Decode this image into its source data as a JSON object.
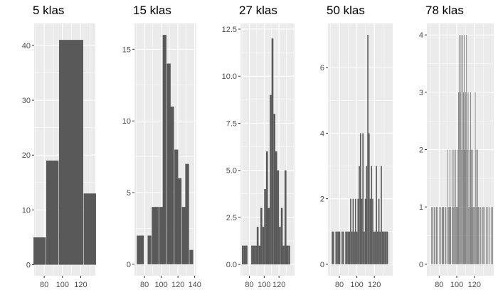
{
  "colors": {
    "panel_bg": "#ebebeb",
    "grid": "#ffffff",
    "bar": "#595959",
    "tick_text": "#4d4d4d"
  },
  "chart_data": [
    {
      "type": "bar",
      "title": "5 klas",
      "grid": true,
      "xlim": [
        69,
        136
      ],
      "ylim": [
        -2,
        44
      ],
      "xticks": [
        80,
        100,
        120
      ],
      "yticks": [
        0,
        10,
        20,
        30,
        40
      ],
      "x": [
        75,
        89,
        103,
        116,
        130
      ],
      "values": [
        5,
        19,
        41,
        41,
        13
      ],
      "bin_width": 13.5,
      "series_note": ""
    },
    {
      "type": "bar",
      "title": "15 klas",
      "grid": true,
      "xlim": [
        68,
        142
      ],
      "ylim": [
        -0.8,
        16.8
      ],
      "xticks": [
        80,
        100,
        120,
        140
      ],
      "yticks": [
        0,
        5,
        10,
        15
      ],
      "x": [
        73,
        77,
        82,
        86,
        91,
        95,
        100,
        104,
        109,
        113,
        118,
        122,
        127,
        131,
        136
      ],
      "values": [
        2,
        2,
        0,
        2,
        4,
        4,
        4,
        16,
        14,
        11,
        8,
        6,
        4,
        7,
        1
      ],
      "bin_width": 4.5
    },
    {
      "type": "bar",
      "title": "27 klas",
      "grid": true,
      "xlim": [
        68,
        141
      ],
      "ylim": [
        -0.6,
        12.8
      ],
      "xticks": [
        80,
        100,
        120
      ],
      "yticks": [
        0,
        2.5,
        5,
        7.5,
        10,
        12.5
      ],
      "xtick_labels": [
        "80",
        "100",
        "120"
      ],
      "ytick_labels": [
        "0.0",
        "2.5",
        "5.0",
        "7.5",
        "10.0",
        "12.5"
      ],
      "x": [
        71.2,
        73.8,
        76.2,
        78.8,
        81.2,
        83.8,
        86.2,
        88.8,
        91.2,
        93.8,
        96.2,
        98.8,
        101.2,
        103.8,
        106.2,
        108.8,
        111.2,
        113.8,
        116.2,
        118.8,
        121.2,
        123.8,
        126.2,
        128.8,
        131.2,
        133.8
      ],
      "values": [
        1,
        1,
        1,
        0,
        0,
        1,
        1,
        1,
        2,
        1,
        3,
        2,
        4,
        6,
        3,
        9,
        12,
        8,
        6,
        5,
        2,
        3,
        1,
        5,
        1,
        1
      ],
      "bin_width": 2.5
    },
    {
      "type": "bar",
      "title": "50 klas",
      "grid": true,
      "xlim": [
        67,
        141
      ],
      "ylim": [
        -0.35,
        7.35
      ],
      "xticks": [
        80,
        100,
        120
      ],
      "yticks": [
        0,
        2,
        4,
        6
      ],
      "x": [
        72,
        73.4,
        74.8,
        76.2,
        77.6,
        79,
        80.4,
        81.8,
        83.2,
        84.6,
        86,
        87.4,
        88.8,
        90.2,
        91.6,
        93,
        94.4,
        95.8,
        97.2,
        98.6,
        100,
        101.4,
        102.8,
        104.2,
        105.6,
        107,
        108.4,
        109.8,
        111.2,
        112.6,
        114,
        115.4,
        116.8,
        118.2,
        119.6,
        121,
        122.4,
        123.8,
        125.2,
        126.6,
        128,
        129.4,
        130.8,
        132.2,
        133.6,
        135,
        136.4
      ],
      "values": [
        1,
        1,
        0,
        1,
        1,
        1,
        1,
        0,
        1,
        1,
        0,
        1,
        1,
        1,
        1,
        2,
        1,
        2,
        1,
        2,
        1,
        2,
        3,
        4,
        2,
        4,
        1,
        2,
        3,
        7,
        4,
        2,
        3,
        2,
        1,
        1,
        3,
        1,
        2,
        1,
        3,
        1,
        1,
        1,
        1,
        1,
        0
      ],
      "bin_width": 1.3
    },
    {
      "type": "bar",
      "title": "78 klas",
      "grid": true,
      "xlim": [
        66,
        142
      ],
      "ylim": [
        -0.2,
        4.2
      ],
      "xticks": [
        80,
        100,
        120
      ],
      "yticks": [
        0,
        1,
        2,
        3,
        4
      ],
      "x": [
        71.5,
        72.4,
        73.3,
        74.2,
        75.1,
        76.0,
        76.9,
        77.8,
        78.7,
        79.6,
        80.5,
        81.4,
        82.3,
        83.2,
        84.1,
        85.0,
        85.9,
        86.8,
        87.7,
        88.6,
        89.5,
        90.4,
        91.3,
        92.2,
        93.1,
        94.0,
        94.9,
        95.8,
        96.7,
        97.6,
        98.5,
        99.4,
        100.3,
        101.2,
        102.1,
        103.0,
        103.9,
        104.8,
        105.7,
        106.6,
        107.5,
        108.4,
        109.3,
        110.2,
        111.1,
        112.0,
        112.9,
        113.8,
        114.7,
        115.6,
        116.5,
        117.4,
        118.3,
        119.2,
        120.1,
        121.0,
        121.9,
        122.8,
        123.7,
        124.6,
        125.5,
        126.4,
        127.3,
        128.2,
        129.1,
        130.0,
        130.9,
        131.8,
        132.7,
        133.6,
        134.5,
        135.4,
        136.3,
        137.2,
        138.1,
        139.0,
        139.9,
        140.8
      ],
      "values": [
        1,
        1,
        0,
        1,
        1,
        0,
        1,
        1,
        0,
        0,
        1,
        1,
        0,
        1,
        1,
        1,
        0,
        1,
        1,
        0,
        2,
        1,
        1,
        2,
        1,
        0,
        2,
        1,
        2,
        1,
        2,
        1,
        2,
        1,
        3,
        4,
        3,
        4,
        2,
        4,
        3,
        4,
        2,
        3,
        4,
        2,
        3,
        1,
        2,
        3,
        2,
        1,
        2,
        1,
        1,
        3,
        2,
        1,
        2,
        1,
        0,
        1,
        1,
        0,
        1,
        1,
        0,
        1,
        0,
        1,
        0,
        1,
        0,
        1,
        0,
        1,
        0,
        1
      ],
      "bin_width": 0.55
    }
  ]
}
